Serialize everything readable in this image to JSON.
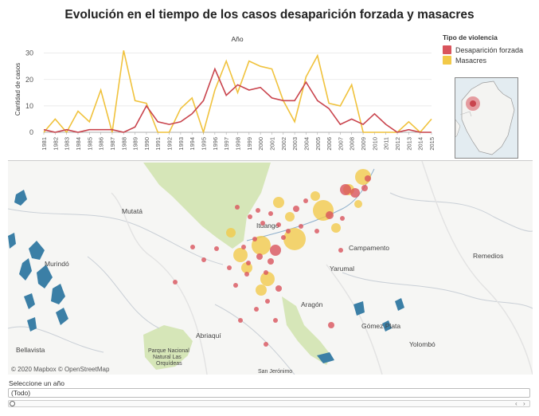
{
  "title": "Evolución en el tiempo de los casos desaparición forzada y masacres",
  "legend": {
    "title": "Tipo de violencia",
    "items": [
      {
        "label": "Desaparición forzada",
        "color": "#d9545c"
      },
      {
        "label": "Masacres",
        "color": "#f2c948"
      }
    ]
  },
  "chart_data": {
    "type": "line",
    "title": "Año",
    "ylabel": "Cantidad de casos",
    "ylim": [
      0,
      32
    ],
    "yticks": [
      0,
      10,
      20,
      30
    ],
    "x": [
      "1981",
      "1982",
      "1983",
      "1984",
      "1985",
      "1986",
      "1987",
      "1988",
      "1989",
      "1990",
      "1991",
      "1992",
      "1993",
      "1994",
      "1995",
      "1996",
      "1997",
      "1998",
      "1999",
      "2000",
      "2001",
      "2002",
      "2003",
      "2004",
      "2005",
      "2006",
      "2007",
      "2008",
      "2009",
      "2010",
      "2011",
      "2012",
      "2013",
      "2014",
      "2015"
    ],
    "series": [
      {
        "name": "Desaparición forzada",
        "color": "#c9444d",
        "values": [
          1,
          0,
          1,
          0,
          1,
          1,
          1,
          0,
          2,
          10,
          4,
          3,
          4,
          7,
          12,
          24,
          14,
          18,
          16,
          17,
          13,
          12,
          12,
          19,
          12,
          9,
          3,
          5,
          3,
          7,
          3,
          0,
          1,
          0,
          0
        ]
      },
      {
        "name": "Masacres",
        "color": "#f0c23c",
        "values": [
          0,
          5,
          0,
          8,
          4,
          16,
          0,
          31,
          12,
          11,
          0,
          0,
          9,
          13,
          0,
          16,
          27,
          15,
          27,
          25,
          24,
          12,
          4,
          21,
          29,
          11,
          10,
          18,
          0,
          0,
          0,
          0,
          4,
          0,
          5
        ]
      }
    ]
  },
  "map": {
    "towns": [
      {
        "name": "Mutatá"
      },
      {
        "name": "Murindó"
      },
      {
        "name": "Campamento"
      },
      {
        "name": "Yarumal"
      },
      {
        "name": "Remedios"
      },
      {
        "name": "Aragón"
      },
      {
        "name": "Gómez Plata"
      },
      {
        "name": "Abriaquí"
      },
      {
        "name": "Yolombó"
      },
      {
        "name": "Bellavista"
      },
      {
        "name": "Ituango"
      },
      {
        "name": "Parque Nacional"
      },
      {
        "name": "Natural Las"
      },
      {
        "name": "Orquídeas"
      },
      {
        "name": "San Jerónimo"
      }
    ],
    "attribution": "© 2020 Mapbox  © OpenStreetMap"
  },
  "filter": {
    "label": "Seleccione un año",
    "value": "(Todo)"
  }
}
